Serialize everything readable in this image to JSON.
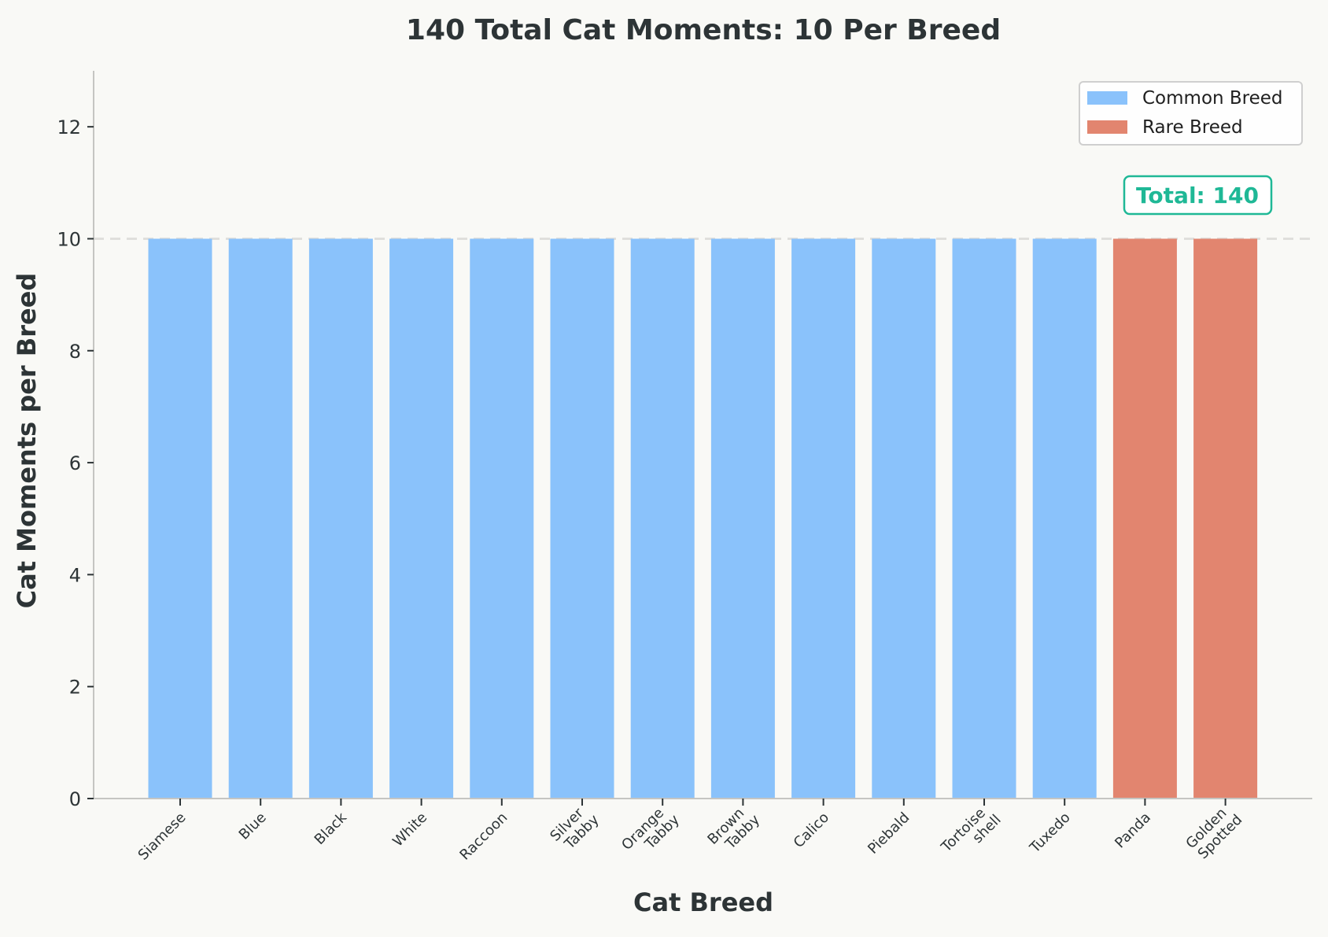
{
  "chart_data": {
    "type": "bar",
    "title": "140 Total Cat Moments: 10 Per Breed",
    "xlabel": "Cat Breed",
    "ylabel": "Cat Moments per Breed",
    "categories": [
      "Siamese",
      "Blue",
      "Black",
      "White",
      "Raccoon",
      "Silver\nTabby",
      "Orange\nTabby",
      "Brown\nTabby",
      "Calico",
      "Piebald",
      "Tortoise\nshell",
      "Tuxedo",
      "Panda",
      "Golden\nSpotted"
    ],
    "values": [
      10,
      10,
      10,
      10,
      10,
      10,
      10,
      10,
      10,
      10,
      10,
      10,
      10,
      10
    ],
    "breed_type": [
      "Common Breed",
      "Common Breed",
      "Common Breed",
      "Common Breed",
      "Common Breed",
      "Common Breed",
      "Common Breed",
      "Common Breed",
      "Common Breed",
      "Common Breed",
      "Common Breed",
      "Common Breed",
      "Rare Breed",
      "Rare Breed"
    ],
    "ylim": [
      0,
      13
    ],
    "yticks": [
      0,
      2,
      4,
      6,
      8,
      10,
      12
    ],
    "reference_line": 10,
    "legend": [
      {
        "label": "Common Breed",
        "color": "#8ac2fb"
      },
      {
        "label": "Rare Breed",
        "color": "#e2856f"
      }
    ],
    "legend_position": "top-right",
    "annotation": {
      "text": "Total: 140",
      "color": "#1fb896"
    },
    "grid": false
  }
}
